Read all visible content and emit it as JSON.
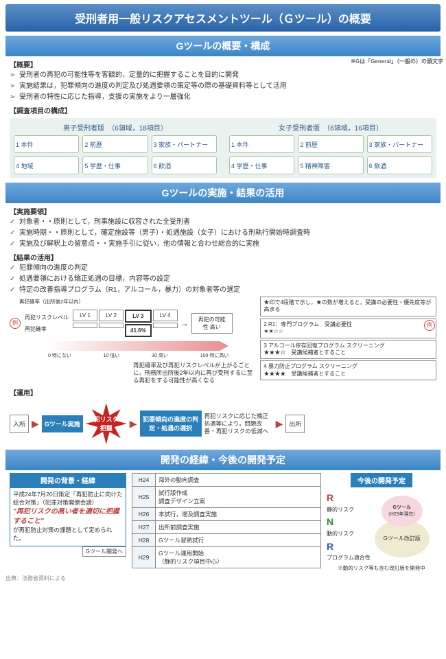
{
  "title": "受刑者用一般リスクアセスメントツール（Ｇツール）の概要",
  "s1": {
    "header": "Gツールの概要・構成",
    "note": "※Gは「General」（一般の）の頭文字",
    "overview_h": "【概要】",
    "overview": [
      "受刑者の再犯の可能性等を客観的，定量的に把握することを目的に開発",
      "実施結果は，犯罪傾向の進度の判定及び処遇要領の策定等の際の基礎資料等として活用",
      "受刑者の特性に応じた指導，支援の実施をより一層強化"
    ],
    "items_h": "【調査項目の構成】",
    "male_title": "男子受刑者版　（6領域，18項目）",
    "female_title": "女子受刑者版　（6領域，16項目）",
    "male_cells": [
      "1  本件",
      "2  前歴",
      "3  家族・パートナー",
      "4  地域",
      "5  学歴・仕事",
      "6  飲酒"
    ],
    "female_cells": [
      "1  本件",
      "2  前歴",
      "3  家族・パートナー",
      "4  学歴・仕事",
      "5  精神障害",
      "6  飲酒"
    ]
  },
  "s2": {
    "header": "Gツールの実施・結果の活用",
    "impl_h": "【実施要領】",
    "impl": [
      "対象者・・原則として，刑事施設に収容された全受刑者",
      "実施時期・・原則として，確定施設等（男子）・処遇施設（女子）における刑執行開始時調査時",
      "実施及び解釈上の留意点・・実施手引に従い，他の情報と合わせ総合的に実施"
    ],
    "use_h": "【結果の活用】",
    "use": [
      "犯罪傾向の進度の判定",
      "処遇要領における矯正処遇の目標，内容等の設定",
      "特定の改善指導プログラム（R1，アルコール，暴力）の対象者等の選定"
    ],
    "ex": "例",
    "prob_note": "再犯確率（出所後2年以内）",
    "lv_label1": "再犯リスクレベル",
    "lv_label2": "再犯確率",
    "levels": [
      "LV 1",
      "LV 2",
      "LV 3",
      "LV 4"
    ],
    "lv3_val": "41.6%",
    "high": "再犯の可能性 高い",
    "scale": [
      "0 特にない",
      "10 低い",
      "30 高い",
      "100 特に高い"
    ],
    "explain": "再犯確率及び再犯リスクレベルが上がるごとに，刑務所出所後2年以内に再び受刑するに至る再犯をする可能性が高くなる",
    "star_note": "★印で4段階で示し，★の数が増えると，受講の必要性・優先度等が高まる",
    "prog": [
      {
        "n": "2",
        "t": "R1：専門プログラム　受講必要性",
        "s": "★★☆☆"
      },
      {
        "n": "3",
        "t": "アルコール依存回復プログラム スクリーニング",
        "s": "★★★☆　受講候補者とすること"
      },
      {
        "n": "4",
        "t": "暴力防止プログラム スクリーニング",
        "s": "★★★★　受講候補者とすること"
      }
    ],
    "op_h": "【運用】",
    "flow": {
      "in": "入所",
      "g": "Gツール実施",
      "burst": "再犯リスクの把握",
      "judge": "犯罪傾向の進度の判定・処遇の選択",
      "eff": "再犯リスクに応じた矯正処遇等により，問題改善・再犯リスクの低減へ",
      "out": "出所"
    }
  },
  "s3": {
    "header": "開発の経緯・今後の開発予定",
    "dev_h": "開発の背景・経緯",
    "dev_body1": "平成24年7月20日策定「再犯防止に向けた総合対策」（犯罪対策閣僚会議）",
    "dev_em": "\"再犯リスクの高い者を適切に把握すること\"",
    "dev_body2": "が再犯防止対策の課題として定められた。",
    "dev_arrow": "Gツール開発へ",
    "timeline": [
      [
        "H24",
        "海外の動向調査"
      ],
      [
        "H25",
        "試行版作成\n調査デザイン立案"
      ],
      [
        "H26",
        "本試行，遡及調査実施"
      ],
      [
        "H27",
        "出所前調査実施"
      ],
      [
        "H28",
        "Gツール習熟試行"
      ],
      [
        "H29",
        "Gツール運用開始\n（静的リスク項目中心）"
      ]
    ],
    "fut_h": "今後の開発予定",
    "rnr": [
      {
        "l": "R",
        "c": "R",
        "t": "静的リスク"
      },
      {
        "l": "N",
        "c": "N",
        "t": "動的リスク"
      },
      {
        "l": "R",
        "c": "Rb",
        "t": "プログラム適合性"
      }
    ],
    "egg1a": "Gツール",
    "egg1b": "（H29年現在）",
    "egg2": "Gツール改訂版",
    "fut_note": "※動的リスク等も含む改訂版を開発中"
  },
  "source": "出典：法務省資料による"
}
